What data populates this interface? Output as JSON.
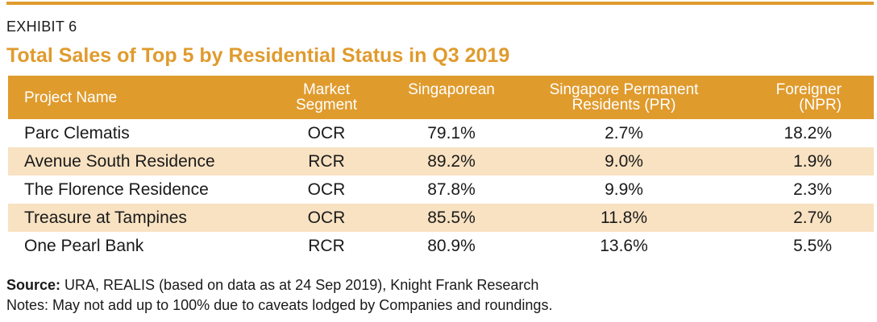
{
  "exhibit": {
    "label": "EXHIBIT 6",
    "title": "Total Sales of Top 5 by Residential Status in Q3 2019"
  },
  "table": {
    "headers": {
      "project_name": "Project Name",
      "market_segment_line1": "Market",
      "market_segment_line2": "Segment",
      "singaporean": "Singaporean",
      "pr_line1": "Singapore Permanent",
      "pr_line2": "Residents (PR)",
      "foreigner_line1": "Foreigner",
      "foreigner_line2": "(NPR)"
    },
    "rows": [
      {
        "name": "Parc Clematis",
        "segment": "OCR",
        "singaporean": "79.1%",
        "pr": "2.7%",
        "foreigner": "18.2%"
      },
      {
        "name": "Avenue South Residence",
        "segment": "RCR",
        "singaporean": "89.2%",
        "pr": "9.0%",
        "foreigner": "1.9%"
      },
      {
        "name": "The Florence Residence",
        "segment": "OCR",
        "singaporean": "87.8%",
        "pr": "9.9%",
        "foreigner": "2.3%"
      },
      {
        "name": "Treasure at Tampines",
        "segment": "OCR",
        "singaporean": "85.5%",
        "pr": "11.8%",
        "foreigner": "2.7%"
      },
      {
        "name": "One Pearl Bank",
        "segment": "RCR",
        "singaporean": "80.9%",
        "pr": "13.6%",
        "foreigner": "5.5%"
      }
    ]
  },
  "footer": {
    "source_label": "Source:",
    "source_text": " URA, REALIS (based on data as at 24 Sep 2019), Knight Frank Research",
    "notes": "Notes: May not add up to 100% due to caveats lodged by Companies and roundings."
  },
  "colors": {
    "accent": "#e09b2d",
    "row_shade": "#f8e2c2",
    "text": "#1a1a1a"
  }
}
